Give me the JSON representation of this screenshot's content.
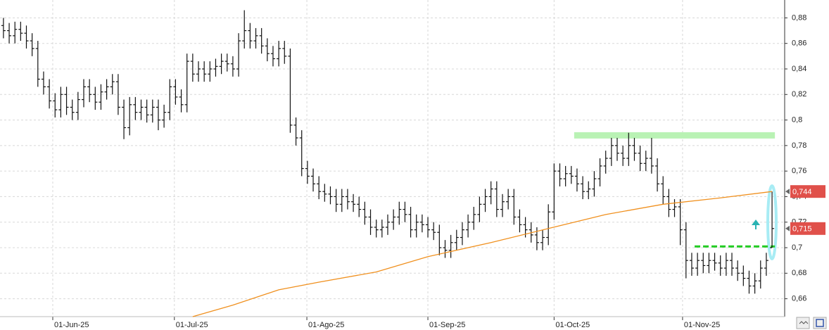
{
  "chart_data": {
    "type": "ohlc",
    "xlim": [
      -0.6,
      136.2
    ],
    "ylim": [
      0.646,
      0.894
    ],
    "xticks": [
      {
        "value": 8.6,
        "label": "01-Jun-25"
      },
      {
        "value": 29.8,
        "label": "01-Jul-25"
      },
      {
        "value": 52.9,
        "label": "01-Ago-25"
      },
      {
        "value": 74.0,
        "label": "01-Sep-25"
      },
      {
        "value": 96.0,
        "label": "01-Oct-25"
      },
      {
        "value": 118.4,
        "label": "01-Nov-25"
      }
    ],
    "yticks": [
      {
        "value": 0.66,
        "label": "0,66"
      },
      {
        "value": 0.68,
        "label": "0,68"
      },
      {
        "value": 0.7,
        "label": "0,7"
      },
      {
        "value": 0.72,
        "label": "0,72"
      },
      {
        "value": 0.74,
        "label": "0,74"
      },
      {
        "value": 0.76,
        "label": "0,76"
      },
      {
        "value": 0.78,
        "label": "0,78"
      },
      {
        "value": 0.8,
        "label": "0,8"
      },
      {
        "value": 0.82,
        "label": "0,82"
      },
      {
        "value": 0.84,
        "label": "0,84"
      },
      {
        "value": 0.86,
        "label": "0,86"
      },
      {
        "value": 0.88,
        "label": "0,88"
      }
    ],
    "grid": true,
    "series": [
      {
        "color": "#111111",
        "open": [
          0.874,
          0.87,
          0.866,
          0.871,
          0.868,
          0.862,
          0.856,
          0.832,
          0.826,
          0.815,
          0.808,
          0.82,
          0.81,
          0.806,
          0.816,
          0.826,
          0.82,
          0.814,
          0.822,
          0.826,
          0.83,
          0.81,
          0.794,
          0.812,
          0.806,
          0.81,
          0.804,
          0.81,
          0.8,
          0.806,
          0.826,
          0.818,
          0.812,
          0.846,
          0.836,
          0.84,
          0.836,
          0.84,
          0.842,
          0.846,
          0.844,
          0.84,
          0.862,
          0.87,
          0.862,
          0.866,
          0.858,
          0.852,
          0.848,
          0.856,
          0.85,
          0.796,
          0.786,
          0.762,
          0.756,
          0.75,
          0.744,
          0.742,
          0.74,
          0.734,
          0.74,
          0.736,
          0.734,
          0.73,
          0.724,
          0.716,
          0.714,
          0.716,
          0.72,
          0.724,
          0.73,
          0.726,
          0.714,
          0.72,
          0.718,
          0.714,
          0.712,
          0.7,
          0.698,
          0.704,
          0.708,
          0.714,
          0.72,
          0.726,
          0.734,
          0.74,
          0.746,
          0.73,
          0.736,
          0.74,
          0.724,
          0.718,
          0.714,
          0.71,
          0.704,
          0.708,
          0.728,
          0.76,
          0.754,
          0.758,
          0.756,
          0.75,
          0.744,
          0.746,
          0.754,
          0.764,
          0.77,
          0.78,
          0.774,
          0.77,
          0.78,
          0.774,
          0.766,
          0.77,
          0.764,
          0.75,
          0.74,
          0.73,
          0.732,
          0.714,
          0.69,
          0.684,
          0.69,
          0.686,
          0.69,
          0.688,
          0.684,
          0.69,
          0.684,
          0.68,
          0.676,
          0.67,
          0.674,
          0.684,
          0.7
        ],
        "high": [
          0.88,
          0.876,
          0.877,
          0.877,
          0.874,
          0.868,
          0.862,
          0.838,
          0.832,
          0.821,
          0.826,
          0.826,
          0.816,
          0.822,
          0.832,
          0.832,
          0.826,
          0.828,
          0.832,
          0.836,
          0.836,
          0.816,
          0.818,
          0.818,
          0.816,
          0.816,
          0.816,
          0.816,
          0.812,
          0.832,
          0.832,
          0.824,
          0.852,
          0.852,
          0.846,
          0.846,
          0.846,
          0.848,
          0.852,
          0.852,
          0.85,
          0.868,
          0.886,
          0.876,
          0.872,
          0.872,
          0.864,
          0.858,
          0.862,
          0.862,
          0.856,
          0.802,
          0.792,
          0.768,
          0.762,
          0.756,
          0.75,
          0.748,
          0.746,
          0.746,
          0.746,
          0.742,
          0.74,
          0.736,
          0.73,
          0.722,
          0.722,
          0.726,
          0.73,
          0.736,
          0.736,
          0.732,
          0.726,
          0.726,
          0.724,
          0.72,
          0.718,
          0.706,
          0.71,
          0.714,
          0.72,
          0.726,
          0.732,
          0.74,
          0.746,
          0.752,
          0.752,
          0.742,
          0.746,
          0.746,
          0.73,
          0.724,
          0.72,
          0.716,
          0.714,
          0.734,
          0.766,
          0.766,
          0.764,
          0.764,
          0.762,
          0.756,
          0.752,
          0.76,
          0.77,
          0.776,
          0.786,
          0.786,
          0.78,
          0.79,
          0.786,
          0.78,
          0.776,
          0.786,
          0.77,
          0.756,
          0.746,
          0.738,
          0.738,
          0.72,
          0.696,
          0.696,
          0.696,
          0.696,
          0.696,
          0.694,
          0.696,
          0.696,
          0.69,
          0.686,
          0.682,
          0.68,
          0.69,
          0.696,
          0.744
        ],
        "low": [
          0.864,
          0.86,
          0.86,
          0.862,
          0.856,
          0.85,
          0.826,
          0.82,
          0.809,
          0.802,
          0.802,
          0.804,
          0.8,
          0.8,
          0.81,
          0.814,
          0.808,
          0.808,
          0.816,
          0.82,
          0.804,
          0.785,
          0.788,
          0.8,
          0.8,
          0.798,
          0.798,
          0.792,
          0.794,
          0.8,
          0.812,
          0.806,
          0.806,
          0.83,
          0.83,
          0.83,
          0.83,
          0.834,
          0.836,
          0.838,
          0.834,
          0.834,
          0.856,
          0.856,
          0.856,
          0.852,
          0.846,
          0.842,
          0.842,
          0.844,
          0.79,
          0.78,
          0.756,
          0.75,
          0.744,
          0.738,
          0.736,
          0.734,
          0.728,
          0.728,
          0.73,
          0.728,
          0.724,
          0.718,
          0.71,
          0.708,
          0.708,
          0.71,
          0.714,
          0.718,
          0.72,
          0.708,
          0.708,
          0.712,
          0.708,
          0.706,
          0.694,
          0.692,
          0.692,
          0.698,
          0.702,
          0.708,
          0.714,
          0.72,
          0.728,
          0.734,
          0.724,
          0.724,
          0.73,
          0.718,
          0.712,
          0.708,
          0.704,
          0.698,
          0.698,
          0.702,
          0.722,
          0.748,
          0.748,
          0.75,
          0.744,
          0.738,
          0.738,
          0.74,
          0.748,
          0.758,
          0.764,
          0.768,
          0.764,
          0.764,
          0.768,
          0.76,
          0.76,
          0.758,
          0.744,
          0.734,
          0.724,
          0.724,
          0.702,
          0.676,
          0.678,
          0.678,
          0.68,
          0.68,
          0.682,
          0.678,
          0.678,
          0.678,
          0.674,
          0.67,
          0.664,
          0.664,
          0.668,
          0.678,
          0.7
        ],
        "close": [
          0.87,
          0.866,
          0.871,
          0.868,
          0.862,
          0.856,
          0.832,
          0.826,
          0.815,
          0.808,
          0.82,
          0.81,
          0.806,
          0.816,
          0.826,
          0.82,
          0.814,
          0.822,
          0.826,
          0.83,
          0.81,
          0.794,
          0.812,
          0.806,
          0.81,
          0.804,
          0.81,
          0.8,
          0.806,
          0.826,
          0.818,
          0.812,
          0.846,
          0.836,
          0.84,
          0.836,
          0.84,
          0.842,
          0.846,
          0.844,
          0.84,
          0.862,
          0.87,
          0.862,
          0.866,
          0.858,
          0.852,
          0.848,
          0.856,
          0.85,
          0.796,
          0.786,
          0.762,
          0.756,
          0.75,
          0.744,
          0.742,
          0.74,
          0.734,
          0.74,
          0.736,
          0.734,
          0.73,
          0.724,
          0.716,
          0.714,
          0.716,
          0.72,
          0.724,
          0.73,
          0.726,
          0.714,
          0.72,
          0.718,
          0.714,
          0.712,
          0.7,
          0.698,
          0.704,
          0.708,
          0.714,
          0.72,
          0.726,
          0.734,
          0.74,
          0.746,
          0.73,
          0.736,
          0.74,
          0.724,
          0.718,
          0.714,
          0.71,
          0.704,
          0.708,
          0.728,
          0.76,
          0.754,
          0.758,
          0.756,
          0.75,
          0.744,
          0.746,
          0.754,
          0.764,
          0.77,
          0.78,
          0.774,
          0.77,
          0.78,
          0.774,
          0.766,
          0.77,
          0.764,
          0.75,
          0.74,
          0.73,
          0.732,
          0.714,
          0.69,
          0.684,
          0.69,
          0.686,
          0.69,
          0.688,
          0.684,
          0.69,
          0.684,
          0.68,
          0.676,
          0.67,
          0.674,
          0.684,
          0.69,
          0.715
        ]
      },
      {
        "type": "line",
        "color": "#f0901e",
        "x": [
          33,
          40,
          48,
          55,
          65,
          74,
          85,
          95,
          105,
          115,
          125,
          134
        ],
        "values": [
          0.646,
          0.655,
          0.667,
          0.673,
          0.681,
          0.693,
          0.704,
          0.715,
          0.726,
          0.734,
          0.739,
          0.744
        ]
      }
    ],
    "hlines": [
      {
        "value": 0.788,
        "x": [
          99.5,
          134.5
        ],
        "color": "#b9f2b4",
        "dashed": false
      },
      {
        "value": 0.701,
        "x": [
          120.5,
          134.5
        ],
        "color": "#22cc22",
        "dashed": true
      }
    ],
    "price_labels": [
      {
        "value": 0.744,
        "label": "0,744",
        "color": "#e0504a"
      },
      {
        "value": 0.715,
        "label": "0,715",
        "color": "#e0504a"
      }
    ]
  }
}
